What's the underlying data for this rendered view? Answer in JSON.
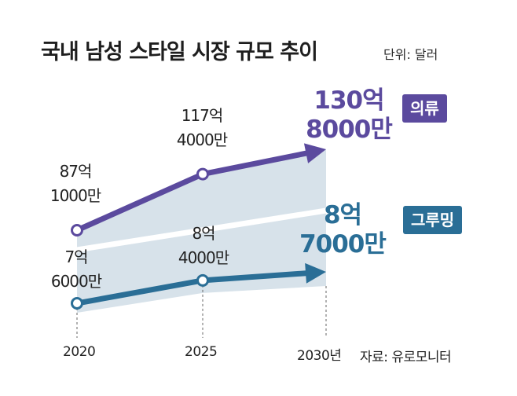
{
  "title": "국내 남성 스타일 시장 규모 추이",
  "unit_label": "단위: 달러",
  "source_label": "자료: 유로모니터",
  "colors": {
    "clothing": "#5b4a9e",
    "grooming": "#2a6e96",
    "area": "#d7e2ea"
  },
  "chart_data": {
    "type": "line",
    "title": "국내 남성 스타일 시장 규모 추이",
    "unit": "단위: 달러",
    "categories": [
      "2020",
      "2025",
      "2030년"
    ],
    "series": [
      {
        "name": "의류",
        "values": [
          8710000000,
          11740000000,
          13080000000
        ],
        "value_labels": [
          [
            "87억",
            "1000만"
          ],
          [
            "117억",
            "4000만"
          ],
          [
            "130억",
            "8000만"
          ]
        ]
      },
      {
        "name": "그루밍",
        "values": [
          760000000,
          840000000,
          870000000
        ],
        "value_labels": [
          [
            "7억",
            "6000만"
          ],
          [
            "8억",
            "4000만"
          ],
          [
            "8억",
            "7000만"
          ]
        ]
      }
    ]
  }
}
